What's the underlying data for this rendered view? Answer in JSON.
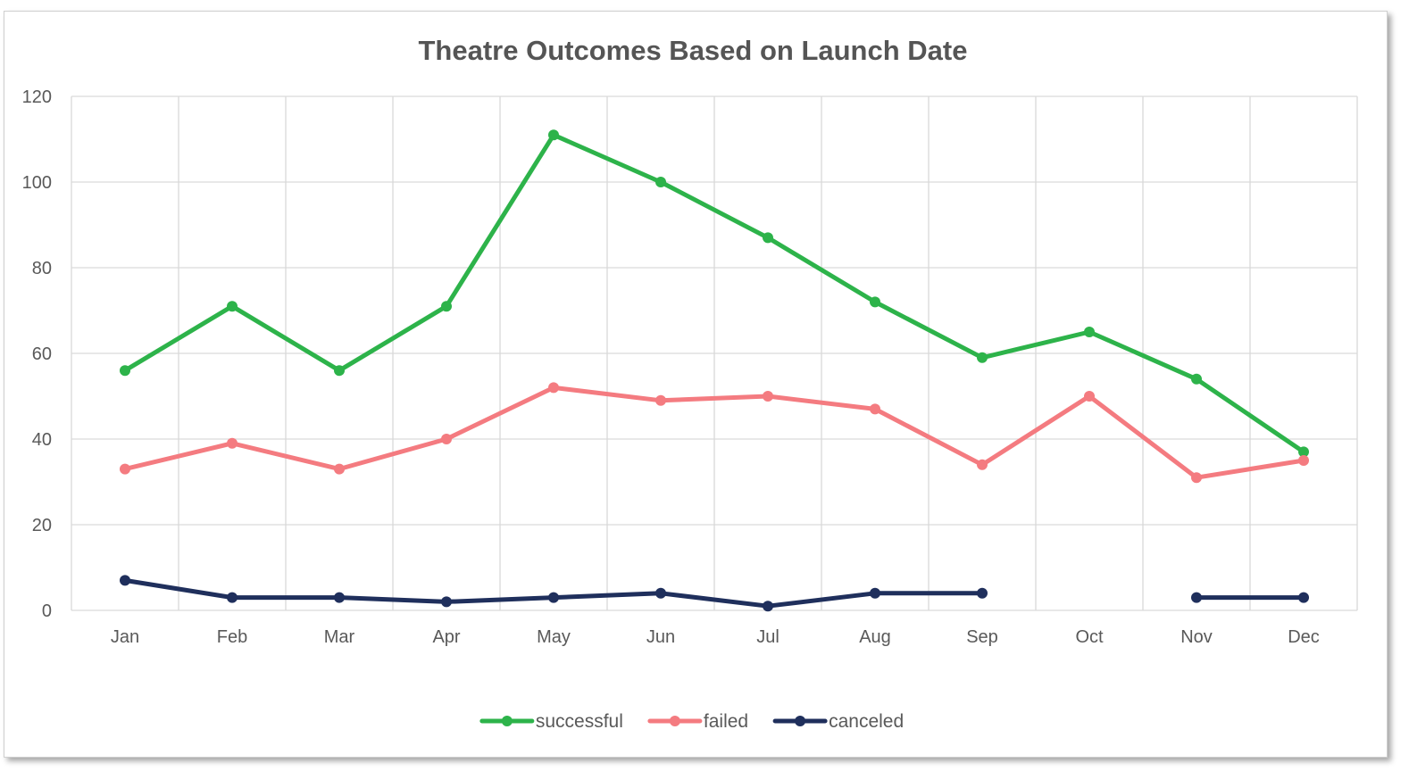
{
  "chart_data": {
    "type": "line",
    "title": "Theatre Outcomes Based on Launch Date",
    "xlabel": "",
    "ylabel": "",
    "categories": [
      "Jan",
      "Feb",
      "Mar",
      "Apr",
      "May",
      "Jun",
      "Jul",
      "Aug",
      "Sep",
      "Oct",
      "Nov",
      "Dec"
    ],
    "ylim": [
      0,
      120
    ],
    "yticks": [
      0,
      20,
      40,
      60,
      80,
      100,
      120
    ],
    "grid": true,
    "legend_position": "bottom",
    "series": [
      {
        "name": "successful",
        "color": "#2db34a",
        "values": [
          56,
          71,
          56,
          71,
          111,
          100,
          87,
          72,
          59,
          65,
          54,
          37
        ]
      },
      {
        "name": "failed",
        "color": "#f47b80",
        "values": [
          33,
          39,
          33,
          40,
          52,
          49,
          50,
          47,
          34,
          50,
          31,
          35
        ]
      },
      {
        "name": "canceled",
        "color": "#1f2f5c",
        "values": [
          7,
          3,
          3,
          2,
          3,
          4,
          1,
          4,
          4,
          null,
          3,
          3
        ]
      }
    ]
  }
}
